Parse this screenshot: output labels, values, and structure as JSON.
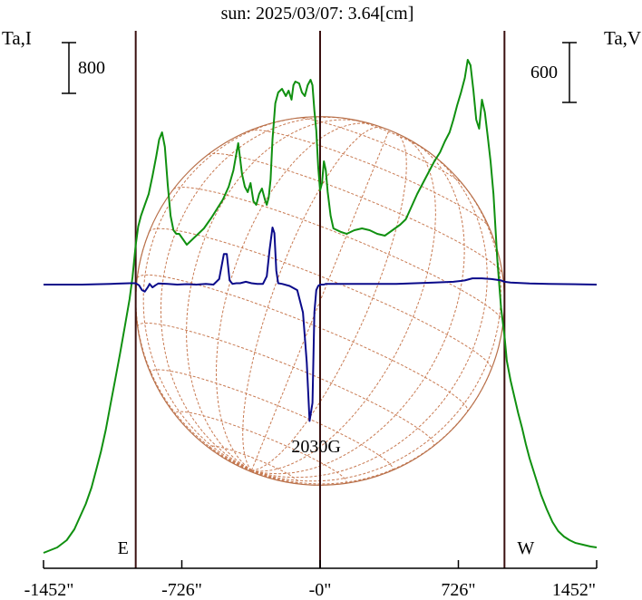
{
  "chart_data": {
    "type": "line",
    "title": "sun: 2025/03/07: 3.64[cm]",
    "left_axis_label": "Ta,I",
    "right_axis_label": "Ta,V",
    "left_scale_label": "800",
    "right_scale_label": "600",
    "left_scale_value": 800,
    "right_scale_value": 600,
    "x_ticks": [
      {
        "value": -1452,
        "label": "-1452\""
      },
      {
        "value": -726,
        "label": "-726\""
      },
      {
        "value": 0,
        "label": "-0\""
      },
      {
        "value": 726,
        "label": "726\""
      },
      {
        "value": 1452,
        "label": "1452\""
      }
    ],
    "xlim": [
      -1452,
      1452
    ],
    "limb_markers": [
      {
        "x": -968,
        "label": "E"
      },
      {
        "x": 0,
        "label": ""
      },
      {
        "x": 968,
        "label": "W"
      }
    ],
    "annotation": {
      "x": -40,
      "label": "2030G"
    },
    "solar_radius_arcsec": 968,
    "series": [
      {
        "key": "I",
        "color": "#109010",
        "x": [
          -1452,
          -1380,
          -1330,
          -1290,
          -1260,
          -1230,
          -1200,
          -1175,
          -1150,
          -1125,
          -1100,
          -1075,
          -1050,
          -1025,
          -1000,
          -985,
          -968,
          -955,
          -940,
          -920,
          -900,
          -880,
          -860,
          -845,
          -830,
          -815,
          -800,
          -785,
          -770,
          -755,
          -740,
          -720,
          -700,
          -670,
          -640,
          -610,
          -570,
          -540,
          -510,
          -480,
          -455,
          -430,
          -410,
          -395,
          -380,
          -365,
          -350,
          -335,
          -320,
          -305,
          -290,
          -280,
          -270,
          -260,
          -250,
          -235,
          -220,
          -200,
          -180,
          -165,
          -150,
          -140,
          -130,
          -110,
          -95,
          -80,
          -65,
          -50,
          -40,
          -30,
          -20,
          -10,
          0,
          10,
          20,
          30,
          40,
          55,
          70,
          90,
          110,
          140,
          180,
          220,
          260,
          300,
          340,
          380,
          420,
          450,
          480,
          510,
          540,
          570,
          600,
          630,
          655,
          680,
          700,
          720,
          740,
          760,
          775,
          790,
          805,
          820,
          835,
          850,
          865,
          880,
          895,
          910,
          930,
          950,
          968,
          980,
          1000,
          1020,
          1040,
          1060,
          1080,
          1100,
          1130,
          1160,
          1190,
          1220,
          1250,
          1280,
          1310,
          1340,
          1380,
          1420,
          1452
        ],
        "y": [
          0,
          30,
          70,
          130,
          200,
          270,
          360,
          460,
          560,
          680,
          820,
          960,
          1100,
          1250,
          1400,
          1520,
          1700,
          1800,
          1860,
          1920,
          1980,
          2080,
          2190,
          2280,
          2320,
          2240,
          2030,
          1860,
          1780,
          1760,
          1760,
          1730,
          1700,
          1730,
          1760,
          1790,
          1850,
          1900,
          1950,
          2020,
          2110,
          2260,
          2090,
          2020,
          1990,
          2040,
          1940,
          1920,
          1980,
          2010,
          1950,
          1920,
          1960,
          2060,
          2280,
          2480,
          2540,
          2560,
          2520,
          2550,
          2500,
          2580,
          2600,
          2590,
          2540,
          2520,
          2580,
          2610,
          2580,
          2440,
          2330,
          2130,
          2000,
          2040,
          2160,
          2110,
          1990,
          1860,
          1790,
          1780,
          1770,
          1760,
          1780,
          1790,
          1780,
          1760,
          1750,
          1780,
          1810,
          1840,
          1910,
          1980,
          2040,
          2100,
          2160,
          2210,
          2270,
          2320,
          2390,
          2470,
          2540,
          2620,
          2720,
          2690,
          2550,
          2390,
          2340,
          2500,
          2430,
          2300,
          2160,
          1980,
          1620,
          1350,
          1200,
          1060,
          950,
          860,
          770,
          690,
          600,
          520,
          420,
          320,
          240,
          170,
          120,
          90,
          70,
          55,
          45,
          35,
          30
        ],
        "ylim": [
          0,
          2700
        ]
      },
      {
        "key": "V",
        "color": "#0a0a8a",
        "x": [
          -1452,
          -1250,
          -1100,
          -1000,
          -968,
          -950,
          -935,
          -920,
          -905,
          -895,
          -880,
          -865,
          -850,
          -800,
          -750,
          -700,
          -650,
          -600,
          -560,
          -530,
          -505,
          -490,
          -475,
          -460,
          -440,
          -420,
          -390,
          -360,
          -330,
          -300,
          -280,
          -265,
          -250,
          -240,
          -230,
          -220,
          -200,
          -160,
          -120,
          -90,
          -70,
          -55,
          -40,
          -30,
          -20,
          -10,
          0,
          10,
          20,
          30,
          45,
          60,
          80,
          120,
          200,
          300,
          400,
          500,
          600,
          700,
          760,
          800,
          850,
          900,
          950,
          968,
          1000,
          1100,
          1200,
          1300,
          1452
        ],
        "y": [
          0,
          0,
          5,
          10,
          10,
          -5,
          -40,
          -50,
          -20,
          5,
          -20,
          -5,
          8,
          5,
          0,
          3,
          0,
          5,
          0,
          40,
          220,
          220,
          30,
          5,
          10,
          10,
          20,
          10,
          5,
          5,
          60,
          250,
          410,
          370,
          100,
          10,
          5,
          -10,
          -40,
          -200,
          -560,
          -980,
          -850,
          -200,
          -40,
          -10,
          0,
          0,
          0,
          5,
          5,
          5,
          5,
          5,
          5,
          5,
          5,
          10,
          15,
          20,
          30,
          45,
          45,
          40,
          30,
          20,
          15,
          8,
          5,
          3,
          0
        ],
        "ylim": [
          -1200,
          1200
        ]
      }
    ]
  }
}
